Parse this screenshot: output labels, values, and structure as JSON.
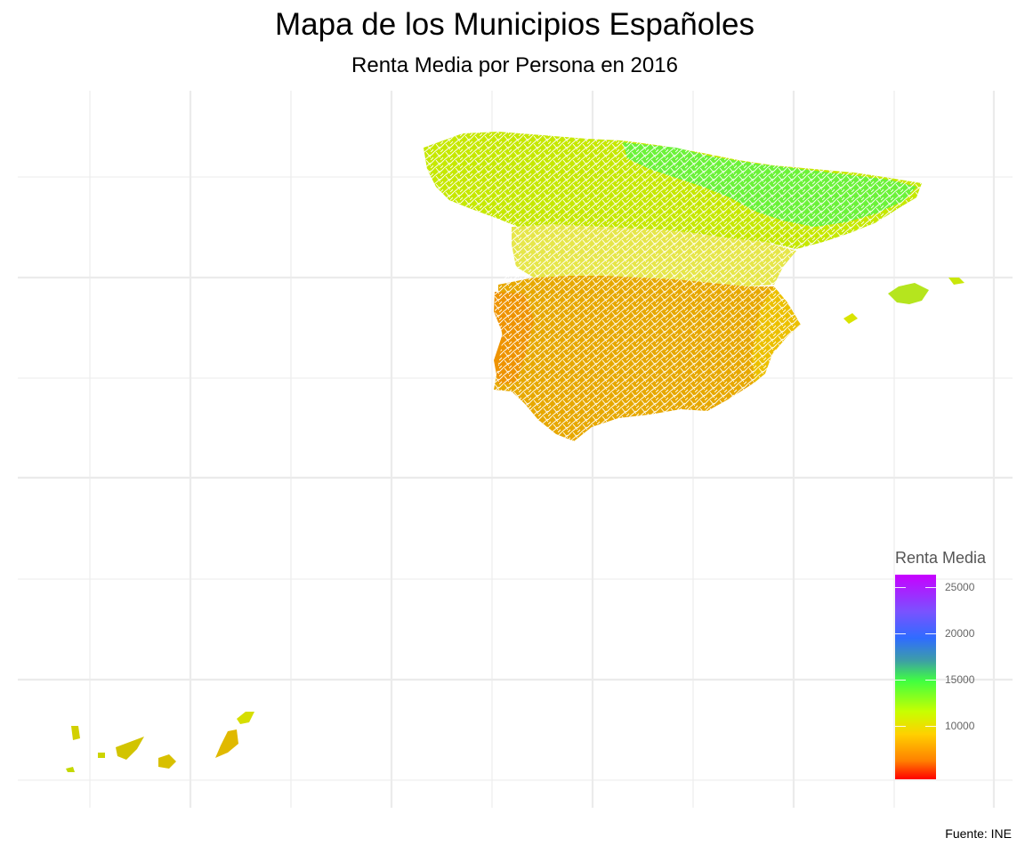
{
  "title": "Mapa de los Municipios Españoles",
  "subtitle": "Renta Media por Persona en 2016",
  "caption": "Fuente: INE",
  "legend": {
    "title": "Renta Media",
    "min": 4300,
    "max": 26300,
    "ticks": [
      {
        "label": "25000",
        "value": 25000
      },
      {
        "label": "20000",
        "value": 20000
      },
      {
        "label": "15000",
        "value": 15000
      },
      {
        "label": "10000",
        "value": 10000
      }
    ],
    "colors": [
      "#ff0000",
      "#ff8000",
      "#ffd000",
      "#c8ff00",
      "#40ff40",
      "#3d9ea6",
      "#2f6cff",
      "#7a52ff",
      "#c800ff"
    ]
  },
  "colors": {
    "background": "#ffffff",
    "gridline": "#ebebeb",
    "border": "#ffffff"
  }
}
